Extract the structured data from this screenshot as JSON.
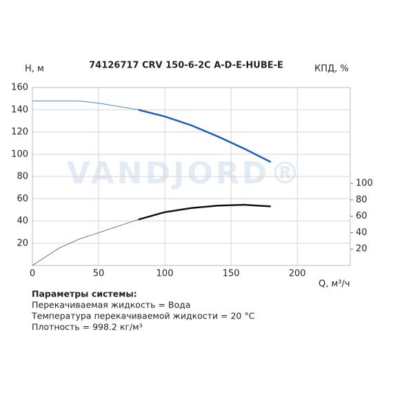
{
  "chart_data": {
    "type": "line",
    "title": "74126717 CRV 150-6-2C A-D-E-HUBE-E",
    "ylabel": "H, м",
    "y2label": "КПД, %",
    "xlabel": "Q, м³/ч",
    "watermark": "VANDJORD®",
    "x": [
      0,
      20,
      35,
      50,
      65,
      80,
      100,
      120,
      140,
      160,
      180
    ],
    "series": [
      {
        "color": "#4a86c5",
        "width": 1,
        "values": [
          148,
          148,
          148,
          146,
          143,
          140,
          null,
          null,
          null,
          null,
          null
        ]
      },
      {
        "color": "#1f5fb4",
        "width": 2.5,
        "values": [
          null,
          null,
          null,
          null,
          null,
          140,
          134,
          126,
          116,
          105,
          93
        ]
      },
      {
        "color": "#555555",
        "width": 0.8,
        "axis": "y2",
        "values": [
          0,
          21,
          32,
          40,
          48,
          56,
          null,
          null,
          null,
          null,
          null
        ]
      },
      {
        "color": "#111111",
        "width": 2.5,
        "axis": "y2",
        "values": [
          null,
          null,
          null,
          null,
          null,
          56,
          65,
          70,
          73,
          74,
          72
        ]
      }
    ],
    "xlim": [
      0,
      240
    ],
    "xticks": [
      0,
      50,
      100,
      150,
      200
    ],
    "ylim": [
      0,
      160
    ],
    "yticks": [
      20,
      40,
      60,
      80,
      100,
      120,
      140,
      160
    ],
    "y2lim": [
      0,
      217
    ],
    "y2ticks": [
      20,
      40,
      60,
      80,
      100
    ],
    "grid": true,
    "parameters": {
      "heading": "Параметры системы:",
      "lines": [
        "Перекачиваемая жидкость = Вода",
        "Температура перекачиваемой жидкости = 20 °C",
        "Плотность = 998.2 кг/м³"
      ]
    }
  }
}
